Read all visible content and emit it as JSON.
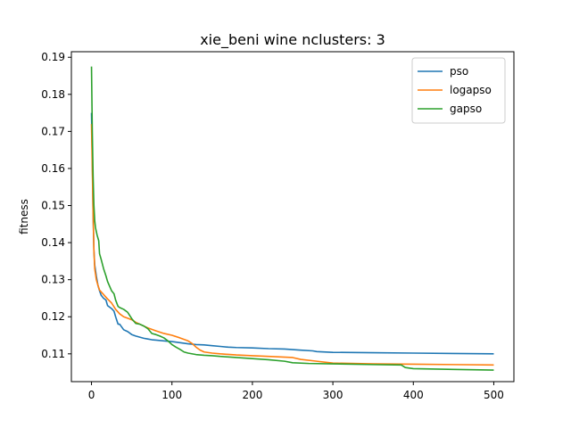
{
  "chart_data": {
    "type": "line",
    "title": "xie_beni wine nclusters: 3",
    "xlabel": "",
    "ylabel": "fitness",
    "xlim": [
      -25,
      525
    ],
    "ylim": [
      0.1025,
      0.1915
    ],
    "xticks": [
      0,
      100,
      200,
      300,
      400,
      500
    ],
    "yticks": [
      0.11,
      0.12,
      0.13,
      0.14,
      0.15,
      0.16,
      0.17,
      0.18,
      0.19
    ],
    "xtick_labels": [
      "0",
      "100",
      "200",
      "300",
      "400",
      "500"
    ],
    "ytick_labels": [
      "0.11",
      "0.12",
      "0.13",
      "0.14",
      "0.15",
      "0.16",
      "0.17",
      "0.18",
      "0.19"
    ],
    "grid": false,
    "legend_position": "upper right",
    "series": [
      {
        "name": "pso",
        "color": "#1f77b4",
        "x": [
          0,
          1,
          2,
          3,
          4,
          6,
          8,
          10,
          12,
          15,
          18,
          20,
          25,
          28,
          30,
          33,
          35,
          40,
          45,
          50,
          55,
          60,
          65,
          70,
          75,
          80,
          90,
          100,
          110,
          120,
          130,
          140,
          150,
          160,
          170,
          180,
          200,
          220,
          240,
          260,
          275,
          280,
          300,
          350,
          400,
          450,
          500
        ],
        "y": [
          0.175,
          0.163,
          0.148,
          0.138,
          0.134,
          0.131,
          0.1285,
          0.127,
          0.1258,
          0.125,
          0.1245,
          0.123,
          0.1222,
          0.1215,
          0.12,
          0.118,
          0.118,
          0.1165,
          0.116,
          0.1152,
          0.1148,
          0.1145,
          0.1142,
          0.114,
          0.1138,
          0.1137,
          0.1135,
          0.1133,
          0.113,
          0.1127,
          0.1125,
          0.1124,
          0.1122,
          0.112,
          0.1118,
          0.1117,
          0.1116,
          0.1114,
          0.1113,
          0.111,
          0.1108,
          0.1106,
          0.1104,
          0.1103,
          0.1102,
          0.1101,
          0.11
        ]
      },
      {
        "name": "logapso",
        "color": "#ff7f0e",
        "x": [
          0,
          1,
          2,
          3,
          4,
          6,
          8,
          10,
          15,
          20,
          25,
          30,
          35,
          40,
          45,
          50,
          55,
          60,
          70,
          80,
          90,
          100,
          110,
          120,
          125,
          130,
          135,
          140,
          150,
          160,
          180,
          200,
          220,
          250,
          260,
          280,
          300,
          350,
          400,
          450,
          500
        ],
        "y": [
          0.172,
          0.16,
          0.148,
          0.138,
          0.133,
          0.13,
          0.1285,
          0.1272,
          0.126,
          0.1248,
          0.1237,
          0.122,
          0.1208,
          0.12,
          0.1196,
          0.1192,
          0.1185,
          0.118,
          0.117,
          0.1162,
          0.1155,
          0.115,
          0.1143,
          0.1135,
          0.1128,
          0.1118,
          0.111,
          0.1105,
          0.1102,
          0.11,
          0.1097,
          0.1095,
          0.1093,
          0.109,
          0.1085,
          0.108,
          0.1075,
          0.1073,
          0.1072,
          0.1071,
          0.107
        ]
      },
      {
        "name": "gapso",
        "color": "#2ca02c",
        "x": [
          0,
          1,
          2,
          3,
          4,
          5,
          7,
          9,
          10,
          12,
          15,
          18,
          20,
          22,
          25,
          28,
          30,
          33,
          35,
          40,
          45,
          50,
          55,
          60,
          65,
          70,
          75,
          80,
          85,
          90,
          95,
          100,
          105,
          110,
          115,
          120,
          130,
          140,
          150,
          160,
          180,
          200,
          220,
          240,
          250,
          270,
          300,
          350,
          385,
          390,
          400,
          450,
          500
        ],
        "y": [
          0.1875,
          0.17,
          0.158,
          0.15,
          0.146,
          0.144,
          0.142,
          0.1405,
          0.137,
          0.1355,
          0.133,
          0.131,
          0.1295,
          0.1285,
          0.127,
          0.1262,
          0.1245,
          0.1228,
          0.1225,
          0.122,
          0.1212,
          0.1195,
          0.1182,
          0.118,
          0.1175,
          0.1168,
          0.1155,
          0.1152,
          0.1148,
          0.1143,
          0.1135,
          0.1125,
          0.1118,
          0.1112,
          0.1105,
          0.1102,
          0.1098,
          0.1096,
          0.1095,
          0.1093,
          0.109,
          0.1087,
          0.1084,
          0.108,
          0.1076,
          0.1074,
          0.1073,
          0.1071,
          0.107,
          0.1063,
          0.106,
          0.1058,
          0.1056
        ]
      }
    ]
  }
}
